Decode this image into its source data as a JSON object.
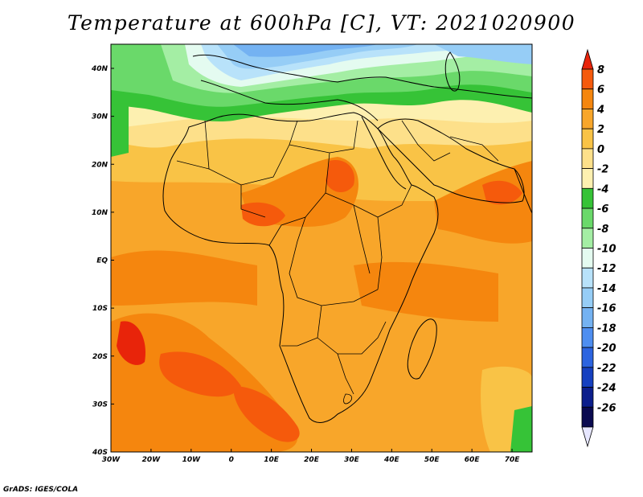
{
  "title": "Temperature at 600hPa [C], VT: 2021020900",
  "credit": "GrADS: IGES/COLA",
  "map": {
    "lon_range": [
      -30,
      75
    ],
    "lat_range": [
      -40,
      45
    ],
    "lon_ticks": [
      "30W",
      "20W",
      "10W",
      "0",
      "10E",
      "20E",
      "30E",
      "40E",
      "50E",
      "60E",
      "70E"
    ],
    "lat_ticks": [
      "40N",
      "30N",
      "20N",
      "10N",
      "EQ",
      "10S",
      "20S",
      "30S",
      "40S"
    ]
  },
  "colorbar": {
    "labels": [
      "8",
      "6",
      "4",
      "2",
      "0",
      "-2",
      "-4",
      "-6",
      "-8",
      "-10",
      "-12",
      "-14",
      "-16",
      "-18",
      "-20",
      "-22",
      "-24",
      "-26"
    ],
    "colors": [
      "#e8240a",
      "#f55a0c",
      "#f5860e",
      "#f8a62a",
      "#f9c346",
      "#fde08a",
      "#fdf0b0",
      "#36c337",
      "#6ad96a",
      "#a4eea4",
      "#e4fbf0",
      "#b8e2fa",
      "#96cdf6",
      "#74b2f2",
      "#4e8ef0",
      "#2c64e0",
      "#1640c0",
      "#0c1e8c",
      "#0a0a50",
      "#e6e6ff"
    ]
  }
}
